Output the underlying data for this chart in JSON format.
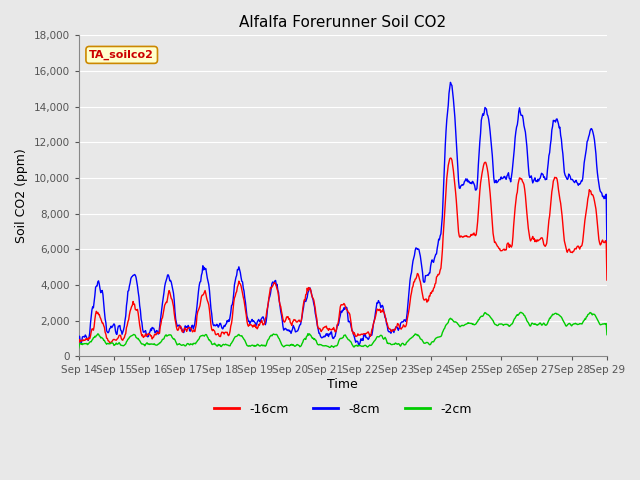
{
  "title": "Alfalfa Forerunner Soil CO2",
  "xlabel": "Time",
  "ylabel": "Soil CO2 (ppm)",
  "legend_label": "TA_soilco2",
  "series_labels": [
    "-16cm",
    "-8cm",
    "-2cm"
  ],
  "series_colors": [
    "#ff0000",
    "#0000ff",
    "#00cc00"
  ],
  "ylim": [
    0,
    18000
  ],
  "yticks": [
    0,
    2000,
    4000,
    6000,
    8000,
    10000,
    12000,
    14000,
    16000,
    18000
  ],
  "xtick_labels": [
    "Sep 14",
    "Sep 15",
    "Sep 16",
    "Sep 17",
    "Sep 18",
    "Sep 19",
    "Sep 20",
    "Sep 21",
    "Sep 22",
    "Sep 23",
    "Sep 24",
    "Sep 25",
    "Sep 26",
    "Sep 27",
    "Sep 28",
    "Sep 29"
  ],
  "bg_color": "#e8e8e8",
  "plot_bg_color": "#e8e8e8",
  "grid_color": "#ffffff",
  "title_fontsize": 11,
  "axis_label_fontsize": 9,
  "tick_fontsize": 7.5,
  "legend_box_color": "#ffffcc",
  "legend_box_edge_color": "#cc8800",
  "line_width": 1.0
}
